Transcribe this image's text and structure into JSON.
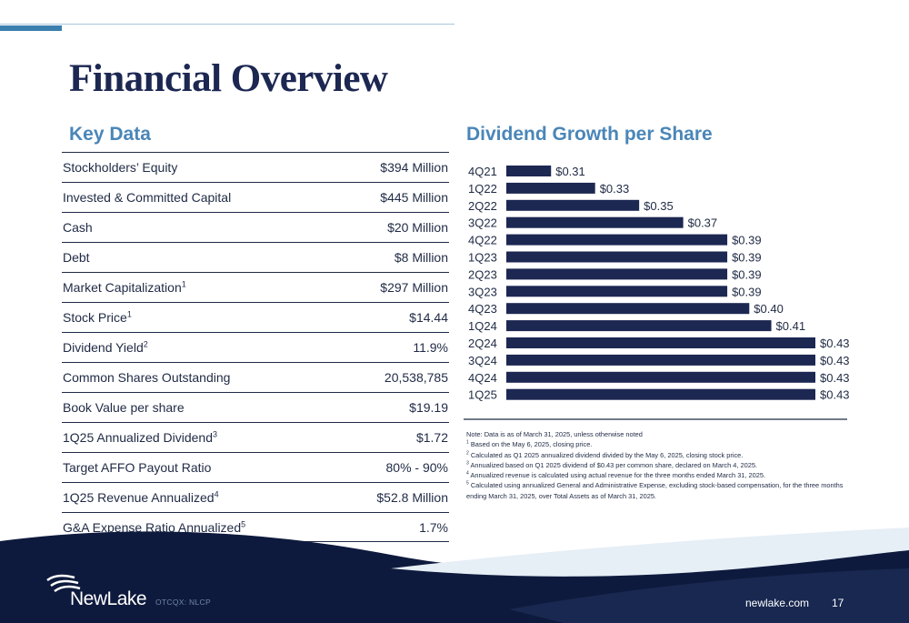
{
  "title": "Financial Overview",
  "key_data": {
    "heading": "Key Data",
    "rows": [
      {
        "label": "Stockholders’ Equity",
        "sup": "",
        "value": "$394 Million"
      },
      {
        "label": "Invested & Committed Capital",
        "sup": "",
        "value": "$445 Million"
      },
      {
        "label": "Cash",
        "sup": "",
        "value": "$20 Million"
      },
      {
        "label": "Debt",
        "sup": "",
        "value": "$8 Million"
      },
      {
        "label": "Market Capitalization",
        "sup": "1",
        "value": "$297 Million"
      },
      {
        "label": "Stock Price",
        "sup": "1",
        "value": "$14.44"
      },
      {
        "label": "Dividend Yield",
        "sup": "2",
        "value": "11.9%"
      },
      {
        "label": "Common Shares Outstanding",
        "sup": "",
        "value": "20,538,785"
      },
      {
        "label": "Book Value per share",
        "sup": "",
        "value": "$19.19"
      },
      {
        "label": "1Q25 Annualized Dividend",
        "sup": "3",
        "value": "$1.72"
      },
      {
        "label": "Target AFFO Payout Ratio",
        "sup": "",
        "value": "80% - 90%"
      },
      {
        "label": "1Q25 Revenue Annualized",
        "sup": "4",
        "value": "$52.8 Million"
      },
      {
        "label": "G&A Expense Ratio Annualized",
        "sup": "5",
        "value": "1.7%"
      }
    ]
  },
  "dividend": {
    "heading": "Dividend Growth per Share"
  },
  "chart_data": {
    "type": "bar",
    "orientation": "horizontal",
    "title": "Dividend Growth per Share",
    "categories": [
      "4Q21",
      "1Q22",
      "2Q22",
      "3Q22",
      "4Q22",
      "1Q23",
      "2Q23",
      "3Q23",
      "4Q23",
      "1Q24",
      "2Q24",
      "3Q24",
      "4Q24",
      "1Q25"
    ],
    "values": [
      0.31,
      0.33,
      0.35,
      0.37,
      0.39,
      0.39,
      0.39,
      0.39,
      0.4,
      0.41,
      0.43,
      0.43,
      0.43,
      0.43
    ],
    "labels": [
      "$0.31",
      "$0.33",
      "$0.35",
      "$0.37",
      "$0.39",
      "$0.39",
      "$0.39",
      "$0.39",
      "$0.40",
      "$0.41",
      "$0.43",
      "$0.43",
      "$0.43",
      "$0.43"
    ],
    "xlim": [
      0.3,
      0.43
    ],
    "grid": false,
    "legend": "none",
    "bar_color": "#1c2752"
  },
  "notes": [
    {
      "sup": "",
      "text": "Note: Data is as of March 31, 2025, unless otherwise noted"
    },
    {
      "sup": "1",
      "text": "Based on the May 6, 2025, closing price."
    },
    {
      "sup": "2",
      "text": "Calculated as Q1 2025 annualized dividend divided by the May 6, 2025, closing stock price."
    },
    {
      "sup": "3",
      "text": "Annualized based on Q1 2025 dividend of $0.43 per common share, declared on March 4, 2025."
    },
    {
      "sup": "4",
      "text": "Annualized revenue is calculated using actual revenue for the three months ended March 31, 2025."
    },
    {
      "sup": "5",
      "text": "Calculated using annualized General and Administrative Expense, excluding stock-based compensation, for the three months ending March 31, 2025, over Total Assets as of March 31, 2025."
    }
  ],
  "footer": {
    "logo_text": "NewLake",
    "ticker": "OTCQX: NLCP",
    "website": "newlake.com",
    "page": "17"
  },
  "colors": {
    "navy": "#1c2752",
    "accent_blue": "#4a86b8",
    "footer_dark": "#0e1a3d"
  }
}
